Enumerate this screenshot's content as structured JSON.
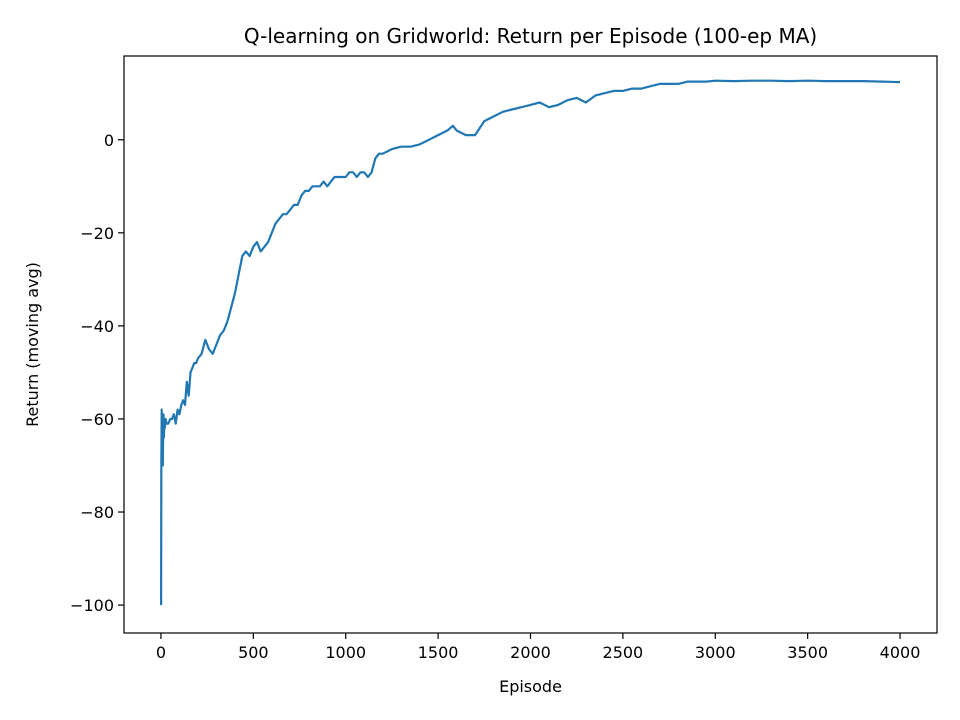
{
  "chart_data": {
    "type": "line",
    "title": "Q-learning on Gridworld: Return per Episode (100-ep MA)",
    "xlabel": "Episode",
    "ylabel": "Return (moving avg)",
    "xlim": [
      -200,
      4200
    ],
    "ylim": [
      -106,
      18
    ],
    "xticks": [
      0,
      500,
      1000,
      1500,
      2000,
      2500,
      3000,
      3500,
      4000
    ],
    "xtick_labels": [
      "0",
      "500",
      "1000",
      "1500",
      "2000",
      "2500",
      "3000",
      "3500",
      "4000"
    ],
    "yticks": [
      -100,
      -80,
      -60,
      -40,
      -20,
      0
    ],
    "ytick_labels": [
      "−100",
      "−80",
      "−60",
      "−40",
      "−20",
      "0"
    ],
    "grid": false,
    "series": [
      {
        "color": "#1f77b4",
        "x": [
          1,
          2,
          4,
          6,
          8,
          10,
          12,
          14,
          16,
          18,
          20,
          25,
          30,
          40,
          50,
          60,
          70,
          80,
          90,
          100,
          110,
          120,
          130,
          140,
          150,
          160,
          170,
          180,
          190,
          200,
          220,
          240,
          260,
          280,
          300,
          320,
          340,
          360,
          380,
          400,
          420,
          440,
          460,
          480,
          500,
          520,
          540,
          560,
          580,
          600,
          620,
          640,
          660,
          680,
          700,
          720,
          740,
          760,
          780,
          800,
          820,
          840,
          860,
          880,
          900,
          920,
          940,
          960,
          980,
          1000,
          1020,
          1040,
          1060,
          1080,
          1100,
          1120,
          1140,
          1160,
          1180,
          1200,
          1250,
          1300,
          1350,
          1400,
          1450,
          1500,
          1550,
          1580,
          1600,
          1650,
          1700,
          1750,
          1800,
          1850,
          1900,
          1950,
          2000,
          2050,
          2100,
          2150,
          2200,
          2250,
          2300,
          2350,
          2400,
          2450,
          2500,
          2550,
          2600,
          2650,
          2700,
          2750,
          2800,
          2850,
          2900,
          2950,
          3000,
          3100,
          3200,
          3300,
          3400,
          3500,
          3600,
          3700,
          3800,
          3900,
          4000
        ],
        "y": [
          -100,
          -72,
          -58,
          -68,
          -60,
          -70,
          -62,
          -59,
          -64,
          -60,
          -62,
          -60,
          -61,
          -61,
          -60,
          -60,
          -59,
          -61,
          -58,
          -59,
          -57,
          -56,
          -57,
          -52,
          -55,
          -50,
          -49,
          -48,
          -48,
          -47,
          -46,
          -43,
          -45,
          -46,
          -44,
          -42,
          -41,
          -39,
          -36,
          -33,
          -29,
          -25,
          -24,
          -25,
          -23,
          -22,
          -24,
          -23,
          -22,
          -20,
          -18,
          -17,
          -16,
          -16,
          -15,
          -14,
          -14,
          -12,
          -11,
          -11,
          -10,
          -10,
          -10,
          -9,
          -10,
          -9,
          -8,
          -8,
          -8,
          -8,
          -7,
          -7,
          -8,
          -7,
          -7,
          -8,
          -7,
          -4,
          -3,
          -3,
          -2,
          -1.5,
          -1.5,
          -1,
          0,
          1,
          2,
          3,
          2,
          1,
          1,
          4,
          5,
          6,
          6.5,
          7,
          7.5,
          8,
          7,
          7.5,
          8.5,
          9,
          8,
          9.5,
          10,
          10.5,
          10.5,
          11,
          11,
          11.5,
          12,
          12,
          12,
          12.5,
          12.5,
          12.5,
          12.7,
          12.6,
          12.7,
          12.7,
          12.6,
          12.7,
          12.6,
          12.6,
          12.6,
          12.5,
          12.4
        ]
      }
    ]
  }
}
